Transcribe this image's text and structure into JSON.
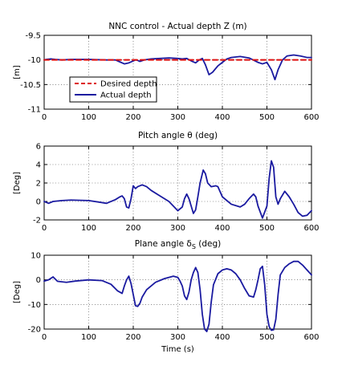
{
  "colors": {
    "desired": "#dd1111",
    "actual": "#1a1aa0",
    "grid": "#000000"
  },
  "chart_data": [
    {
      "type": "line",
      "title": "NNC control - Actual depth Z (m)",
      "xlabel": "",
      "ylabel": "[m]",
      "xlim": [
        0,
        600
      ],
      "ylim": [
        -11,
        -9.5
      ],
      "xticks": [
        0,
        100,
        200,
        300,
        400,
        500,
        600
      ],
      "yticks": [
        -9.5,
        -10,
        -10.5,
        -11
      ],
      "ytick_labels": [
        "-9.5",
        "-10",
        "-10.5",
        "-11"
      ],
      "grid": true,
      "legend": "inside-left",
      "series": [
        {
          "name": "Desired depth",
          "style": "dashed",
          "color": "#dd1111",
          "x": [
            0,
            600
          ],
          "y": [
            -10,
            -10
          ]
        },
        {
          "name": "Actual depth",
          "style": "solid",
          "color": "#1a1aa0",
          "x": [
            0,
            5,
            15,
            25,
            40,
            60,
            100,
            140,
            160,
            170,
            180,
            190,
            200,
            205,
            210,
            215,
            225,
            240,
            260,
            280,
            300,
            310,
            320,
            330,
            340,
            348,
            355,
            362,
            370,
            378,
            390,
            400,
            410,
            420,
            440,
            460,
            480,
            490,
            500,
            510,
            518,
            525,
            535,
            545,
            560,
            575,
            590,
            600
          ],
          "y": [
            -10.0,
            -9.99,
            -9.98,
            -9.99,
            -10.0,
            -9.99,
            -9.99,
            -10.0,
            -10.0,
            -10.04,
            -10.08,
            -10.06,
            -10.02,
            -10.0,
            -10.01,
            -10.03,
            -10.0,
            -9.98,
            -9.97,
            -9.96,
            -9.97,
            -9.98,
            -9.97,
            -10.02,
            -10.06,
            -10.0,
            -9.97,
            -10.1,
            -10.3,
            -10.25,
            -10.12,
            -10.05,
            -9.98,
            -9.95,
            -9.93,
            -9.96,
            -10.05,
            -10.08,
            -10.05,
            -10.2,
            -10.4,
            -10.2,
            -10.0,
            -9.92,
            -9.9,
            -9.92,
            -9.95,
            -9.95
          ]
        }
      ]
    },
    {
      "type": "line",
      "title": "Pitch angle θ (deg)",
      "xlabel": "",
      "ylabel": "[Deg]",
      "xlim": [
        0,
        600
      ],
      "ylim": [
        -2,
        6
      ],
      "xticks": [
        0,
        100,
        200,
        300,
        400,
        500,
        600
      ],
      "yticks": [
        -2,
        0,
        2,
        4,
        6
      ],
      "ytick_labels": [
        "-2",
        "0",
        "2",
        "4",
        "6"
      ],
      "grid": true,
      "series": [
        {
          "color": "#1a1aa0",
          "x": [
            0,
            10,
            20,
            40,
            60,
            100,
            140,
            160,
            170,
            175,
            180,
            185,
            190,
            195,
            200,
            205,
            210,
            220,
            230,
            240,
            260,
            280,
            300,
            310,
            315,
            320,
            325,
            330,
            335,
            340,
            345,
            350,
            357,
            362,
            367,
            375,
            385,
            390,
            400,
            420,
            440,
            450,
            460,
            470,
            475,
            480,
            490,
            500,
            505,
            510,
            515,
            520,
            525,
            530,
            540,
            550,
            560,
            570,
            580,
            590,
            600
          ],
          "y": [
            0.0,
            -0.2,
            0.0,
            0.1,
            0.15,
            0.1,
            -0.2,
            0.2,
            0.5,
            0.6,
            0.3,
            -0.6,
            -0.7,
            0.3,
            1.7,
            1.4,
            1.6,
            1.8,
            1.6,
            1.2,
            0.6,
            0.0,
            -1.0,
            -0.6,
            0.3,
            0.8,
            0.3,
            -0.5,
            -1.3,
            -0.9,
            0.5,
            2.0,
            3.4,
            3.0,
            2.0,
            1.6,
            1.7,
            1.6,
            0.5,
            -0.3,
            -0.6,
            -0.3,
            0.3,
            0.8,
            0.5,
            -0.5,
            -1.8,
            -0.5,
            2.5,
            4.4,
            3.7,
            0.5,
            -0.3,
            0.3,
            1.1,
            0.5,
            -0.3,
            -1.2,
            -1.6,
            -1.5,
            -1.0
          ]
        }
      ]
    },
    {
      "type": "line",
      "title": "Plane angle δ",
      "title_subscript": "S",
      "title_suffix": " (deg)",
      "xlabel": "Time (s)",
      "ylabel": "[Deg]",
      "xlim": [
        0,
        600
      ],
      "ylim": [
        -20,
        10
      ],
      "xticks": [
        0,
        100,
        200,
        300,
        400,
        500,
        600
      ],
      "yticks": [
        -20,
        -10,
        0,
        10
      ],
      "ytick_labels": [
        "-20",
        "-10",
        "0",
        "10"
      ],
      "grid": true,
      "series": [
        {
          "color": "#1a1aa0",
          "x": [
            0,
            10,
            20,
            30,
            50,
            70,
            100,
            130,
            150,
            165,
            175,
            180,
            185,
            190,
            195,
            200,
            205,
            210,
            215,
            220,
            230,
            250,
            270,
            290,
            300,
            305,
            310,
            315,
            320,
            325,
            330,
            335,
            340,
            345,
            350,
            355,
            360,
            365,
            370,
            375,
            380,
            390,
            400,
            410,
            420,
            430,
            440,
            450,
            460,
            470,
            475,
            480,
            485,
            490,
            495,
            500,
            505,
            510,
            515,
            520,
            525,
            530,
            540,
            550,
            560,
            570,
            580,
            590,
            600
          ],
          "y": [
            -0.5,
            0,
            1.2,
            -0.6,
            -1.0,
            -0.5,
            0,
            -0.3,
            -1.8,
            -4.5,
            -5.5,
            -2.5,
            0,
            1.5,
            -1.5,
            -6,
            -10.5,
            -10.8,
            -9.5,
            -7,
            -4,
            -1,
            0.5,
            1.5,
            1.0,
            -0.5,
            -2.5,
            -6.5,
            -8,
            -5,
            0,
            3,
            5,
            3,
            -4,
            -14,
            -20,
            -21,
            -18,
            -9,
            -2,
            2.5,
            4,
            4.5,
            4,
            2.5,
            0,
            -3.5,
            -6.5,
            -7,
            -4,
            0,
            4.5,
            5.5,
            -2,
            -14,
            -19,
            -20.5,
            -20.3,
            -16,
            -6,
            2,
            5,
            6.5,
            7.5,
            7.5,
            6,
            4,
            2
          ]
        }
      ]
    }
  ]
}
